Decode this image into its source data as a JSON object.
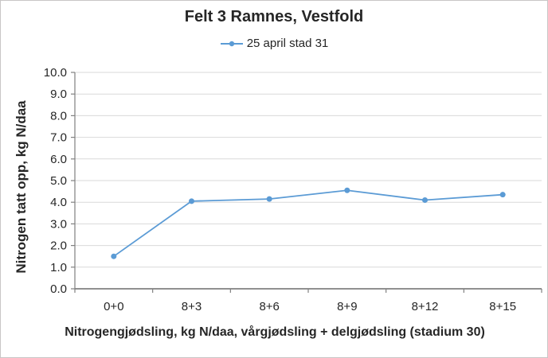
{
  "window": {
    "background": "#ffffff",
    "border_color": "#c8c6c6"
  },
  "chart_data": {
    "type": "line",
    "title": "Felt 3 Ramnes, Vestfold",
    "categories": [
      "0+0",
      "8+3",
      "8+6",
      "8+9",
      "8+12",
      "8+15"
    ],
    "series": [
      {
        "name": "25 april stad 31",
        "values": [
          1.5,
          4.05,
          4.15,
          4.55,
          4.1,
          4.35
        ],
        "color": "#5B9BD5",
        "marker": "circle"
      }
    ],
    "xlabel": "Nitrogengjødsling, kg N/daa, vårgjødsling + delgjødsling (stadium 30)",
    "ylabel": "Nitrogen tatt opp, kg N/daa",
    "ylim": [
      0,
      10
    ],
    "ytick_step": 1,
    "ytick_decimals": 1,
    "grid": "horizontal",
    "legend_position": "top-center",
    "grid_color": "#D9D9D9",
    "axis_color": "#808080",
    "text_color": "#262626"
  }
}
